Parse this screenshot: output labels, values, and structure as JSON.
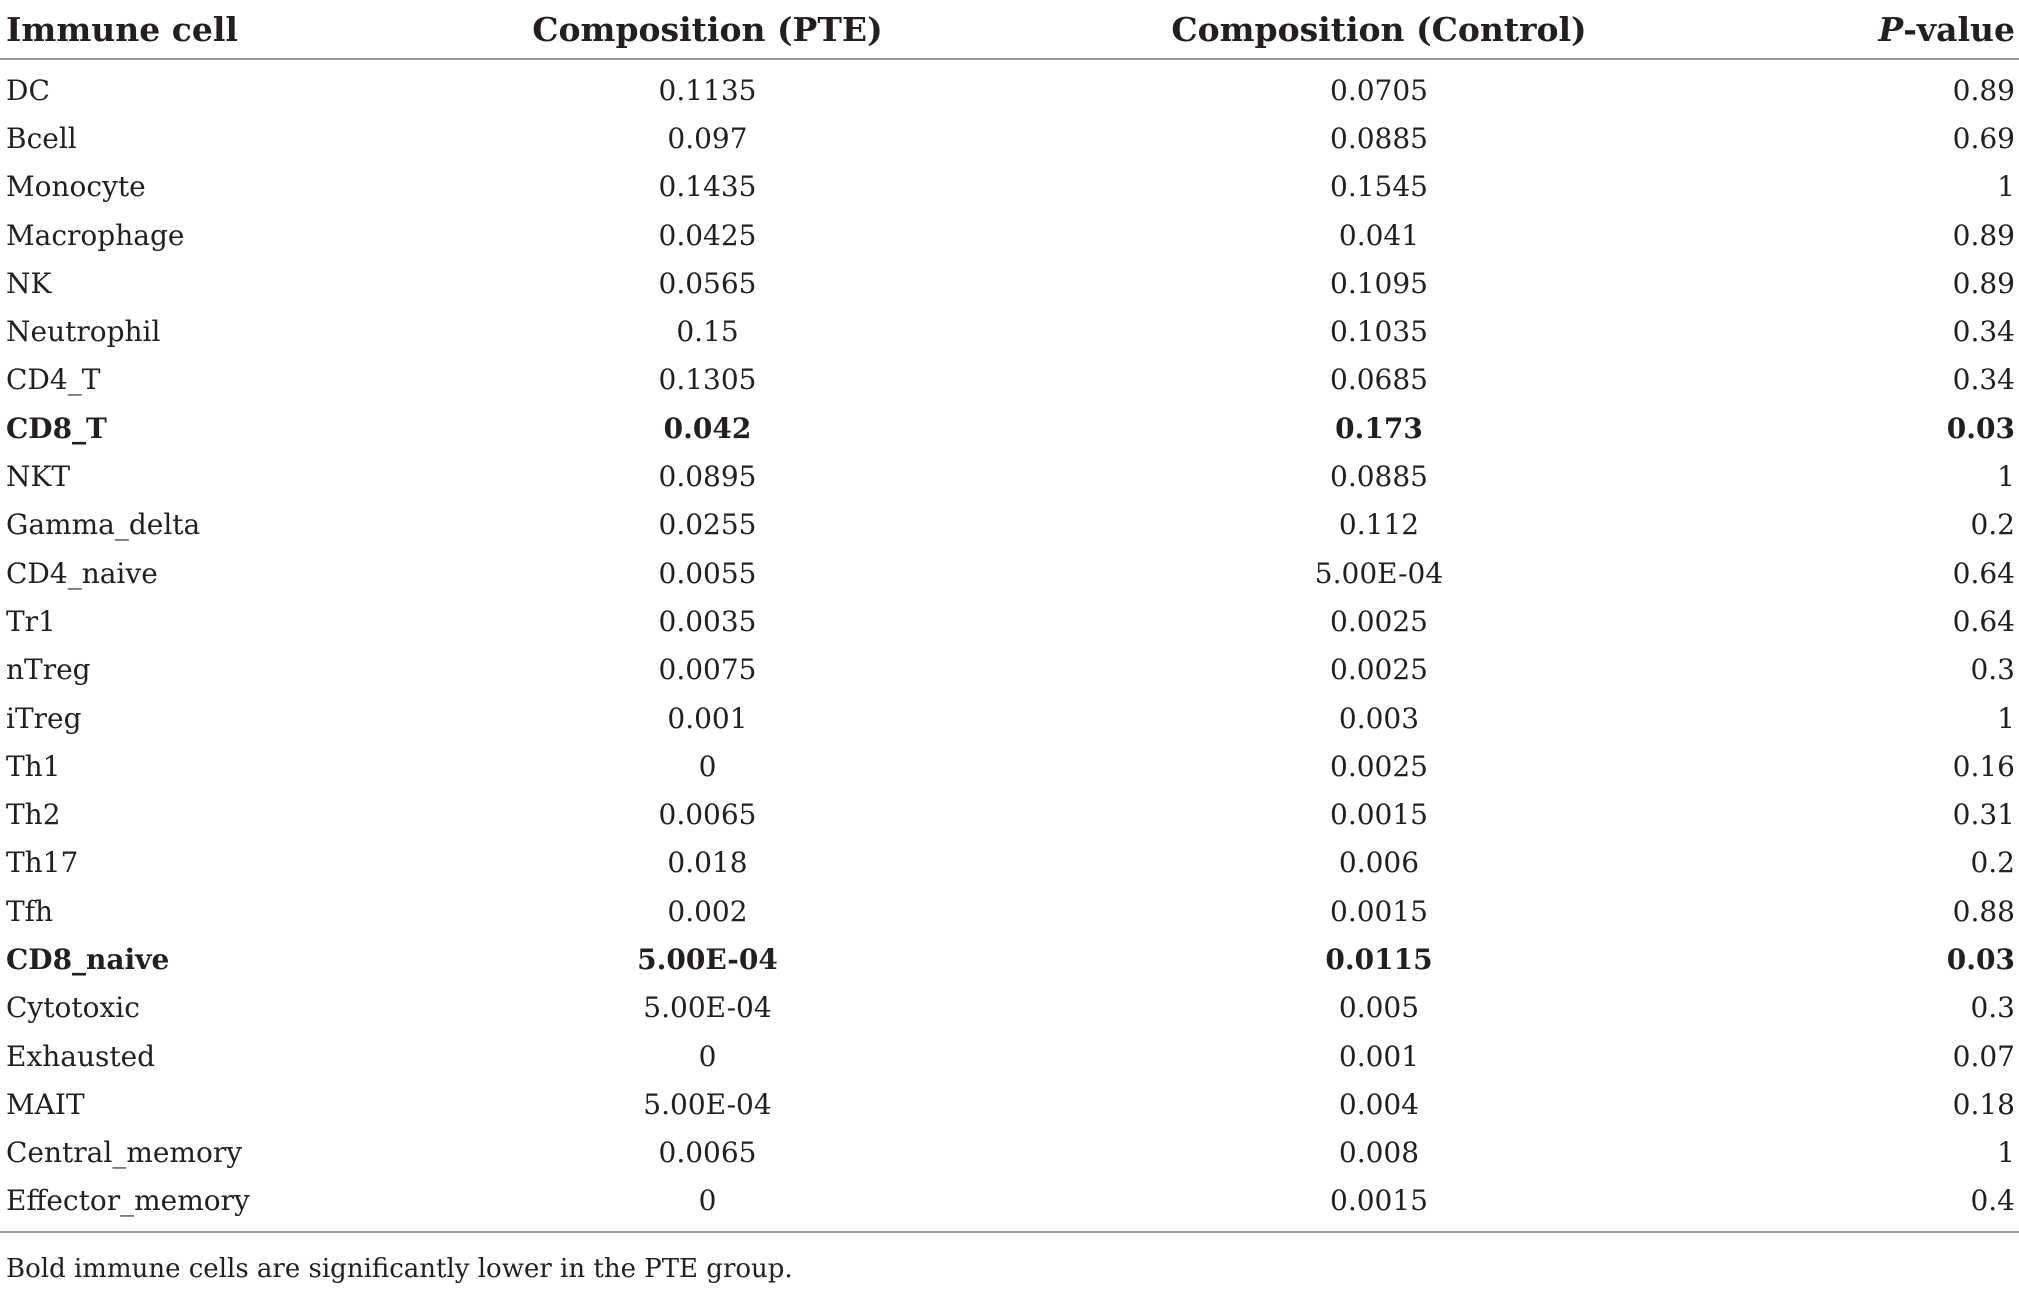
{
  "table": {
    "headers": {
      "immune_cell": "Immune cell",
      "composition_pte": "Composition (PTE)",
      "composition_control": "Composition (Control)",
      "p_value_italic": "P",
      "p_value_rest": "-value"
    },
    "rows": [
      {
        "cell": "DC",
        "pte": "0.1135",
        "control": "0.0705",
        "p": "0.89",
        "bold": false
      },
      {
        "cell": "Bcell",
        "pte": "0.097",
        "control": "0.0885",
        "p": "0.69",
        "bold": false
      },
      {
        "cell": "Monocyte",
        "pte": "0.1435",
        "control": "0.1545",
        "p": "1",
        "bold": false
      },
      {
        "cell": "Macrophage",
        "pte": "0.0425",
        "control": "0.041",
        "p": "0.89",
        "bold": false
      },
      {
        "cell": "NK",
        "pte": "0.0565",
        "control": "0.1095",
        "p": "0.89",
        "bold": false
      },
      {
        "cell": "Neutrophil",
        "pte": "0.15",
        "control": "0.1035",
        "p": "0.34",
        "bold": false
      },
      {
        "cell": "CD4_T",
        "pte": "0.1305",
        "control": "0.0685",
        "p": "0.34",
        "bold": false
      },
      {
        "cell": "CD8_T",
        "pte": "0.042",
        "control": "0.173",
        "p": "0.03",
        "bold": true
      },
      {
        "cell": "NKT",
        "pte": "0.0895",
        "control": "0.0885",
        "p": "1",
        "bold": false
      },
      {
        "cell": "Gamma_delta",
        "pte": "0.0255",
        "control": "0.112",
        "p": "0.2",
        "bold": false
      },
      {
        "cell": "CD4_naive",
        "pte": "0.0055",
        "control": "5.00E-04",
        "p": "0.64",
        "bold": false
      },
      {
        "cell": "Tr1",
        "pte": "0.0035",
        "control": "0.0025",
        "p": "0.64",
        "bold": false
      },
      {
        "cell": "nTreg",
        "pte": "0.0075",
        "control": "0.0025",
        "p": "0.3",
        "bold": false
      },
      {
        "cell": "iTreg",
        "pte": "0.001",
        "control": "0.003",
        "p": "1",
        "bold": false
      },
      {
        "cell": "Th1",
        "pte": "0",
        "control": "0.0025",
        "p": "0.16",
        "bold": false
      },
      {
        "cell": "Th2",
        "pte": "0.0065",
        "control": "0.0015",
        "p": "0.31",
        "bold": false
      },
      {
        "cell": "Th17",
        "pte": "0.018",
        "control": "0.006",
        "p": "0.2",
        "bold": false
      },
      {
        "cell": "Tfh",
        "pte": "0.002",
        "control": "0.0015",
        "p": "0.88",
        "bold": false
      },
      {
        "cell": "CD8_naive",
        "pte": "5.00E-04",
        "control": "0.0115",
        "p": "0.03",
        "bold": true
      },
      {
        "cell": "Cytotoxic",
        "pte": "5.00E-04",
        "control": "0.005",
        "p": "0.3",
        "bold": false
      },
      {
        "cell": "Exhausted",
        "pte": "0",
        "control": "0.001",
        "p": "0.07",
        "bold": false
      },
      {
        "cell": "MAIT",
        "pte": "5.00E-04",
        "control": "0.004",
        "p": "0.18",
        "bold": false
      },
      {
        "cell": "Central_memory",
        "pte": "0.0065",
        "control": "0.008",
        "p": "1",
        "bold": false
      },
      {
        "cell": "Effector_memory",
        "pte": "0",
        "control": "0.0015",
        "p": "0.4",
        "bold": false
      }
    ]
  },
  "footnote": "Bold immune cells are significantly lower in the PTE group."
}
